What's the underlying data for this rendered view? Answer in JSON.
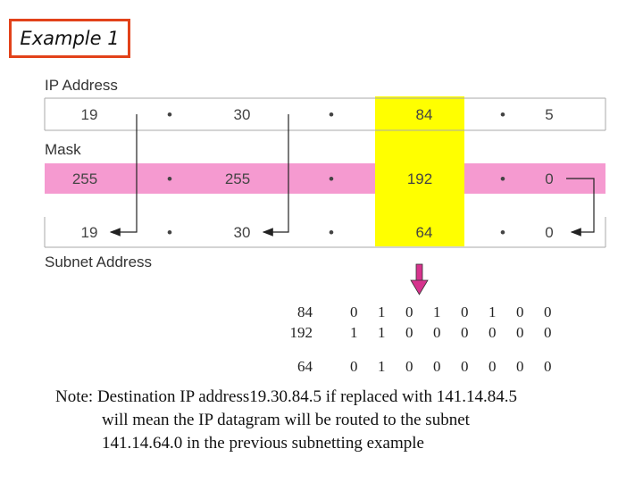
{
  "title": "Example 1",
  "labels": {
    "ip": "IP Address",
    "mask": "Mask",
    "subnet": "Subnet Address"
  },
  "rows": {
    "ip": [
      "19",
      "•",
      "30",
      "•",
      "84",
      "•",
      "5"
    ],
    "mask": [
      "255",
      "•",
      "255",
      "•",
      "192",
      "•",
      "0"
    ],
    "subnet": [
      "19",
      "•",
      "30",
      "•",
      "64",
      "•",
      "0"
    ]
  },
  "binary": [
    {
      "dec": "84",
      "bits": [
        "0",
        "1",
        "0",
        "1",
        "0",
        "1",
        "0",
        "0"
      ]
    },
    {
      "dec": "192",
      "bits": [
        "1",
        "1",
        "0",
        "0",
        "0",
        "0",
        "0",
        "0"
      ]
    },
    {
      "dec": "64",
      "bits": [
        "0",
        "1",
        "0",
        "0",
        "0",
        "0",
        "0",
        "0"
      ]
    }
  ],
  "note": {
    "line1": "Note: Destination IP address19.30.84.5 if replaced with 141.14.84.5",
    "line2": "will mean the IP datagram will be routed to the subnet",
    "line3": "141.14.64.0 in the previous subnetting example"
  },
  "colors": {
    "mask_band": "#f59ad0",
    "highlight": "#ffff00",
    "title_border": "#e2421a",
    "arrow": "#d6338d"
  }
}
